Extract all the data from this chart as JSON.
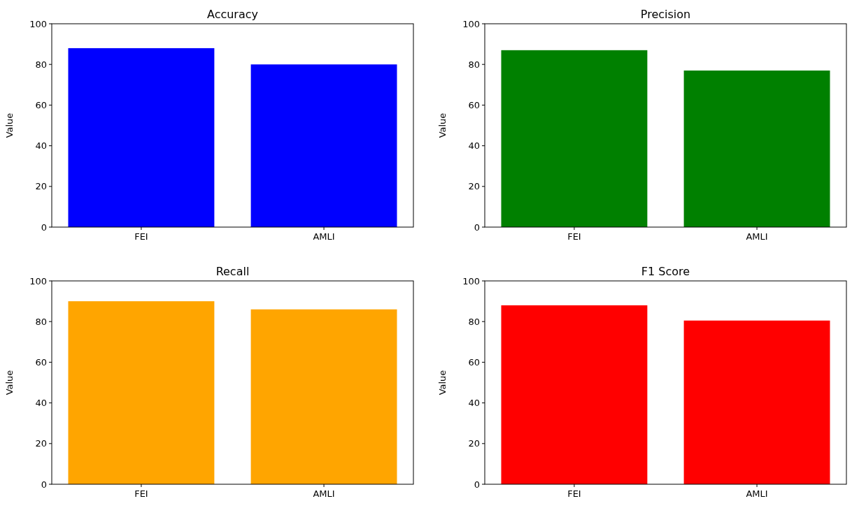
{
  "chart_data": [
    {
      "type": "bar",
      "title": "Accuracy",
      "ylabel": "Value",
      "categories": [
        "FEI",
        "AMLI"
      ],
      "values": [
        88,
        80
      ],
      "color": "#0000ff",
      "ylim": [
        0,
        100
      ],
      "yticks": [
        0,
        20,
        40,
        60,
        80,
        100
      ],
      "grid": false
    },
    {
      "type": "bar",
      "title": "Precision",
      "ylabel": "Value",
      "categories": [
        "FEI",
        "AMLI"
      ],
      "values": [
        87,
        77
      ],
      "color": "#008000",
      "ylim": [
        0,
        100
      ],
      "yticks": [
        0,
        20,
        40,
        60,
        80,
        100
      ],
      "grid": false
    },
    {
      "type": "bar",
      "title": "Recall",
      "ylabel": "Value",
      "categories": [
        "FEI",
        "AMLI"
      ],
      "values": [
        90,
        86
      ],
      "color": "#ffa500",
      "ylim": [
        0,
        100
      ],
      "yticks": [
        0,
        20,
        40,
        60,
        80,
        100
      ],
      "grid": false
    },
    {
      "type": "bar",
      "title": "F1 Score",
      "ylabel": "Value",
      "categories": [
        "FEI",
        "AMLI"
      ],
      "values": [
        88,
        80.5
      ],
      "color": "#ff0000",
      "ylim": [
        0,
        100
      ],
      "yticks": [
        0,
        20,
        40,
        60,
        80,
        100
      ],
      "grid": false
    }
  ]
}
